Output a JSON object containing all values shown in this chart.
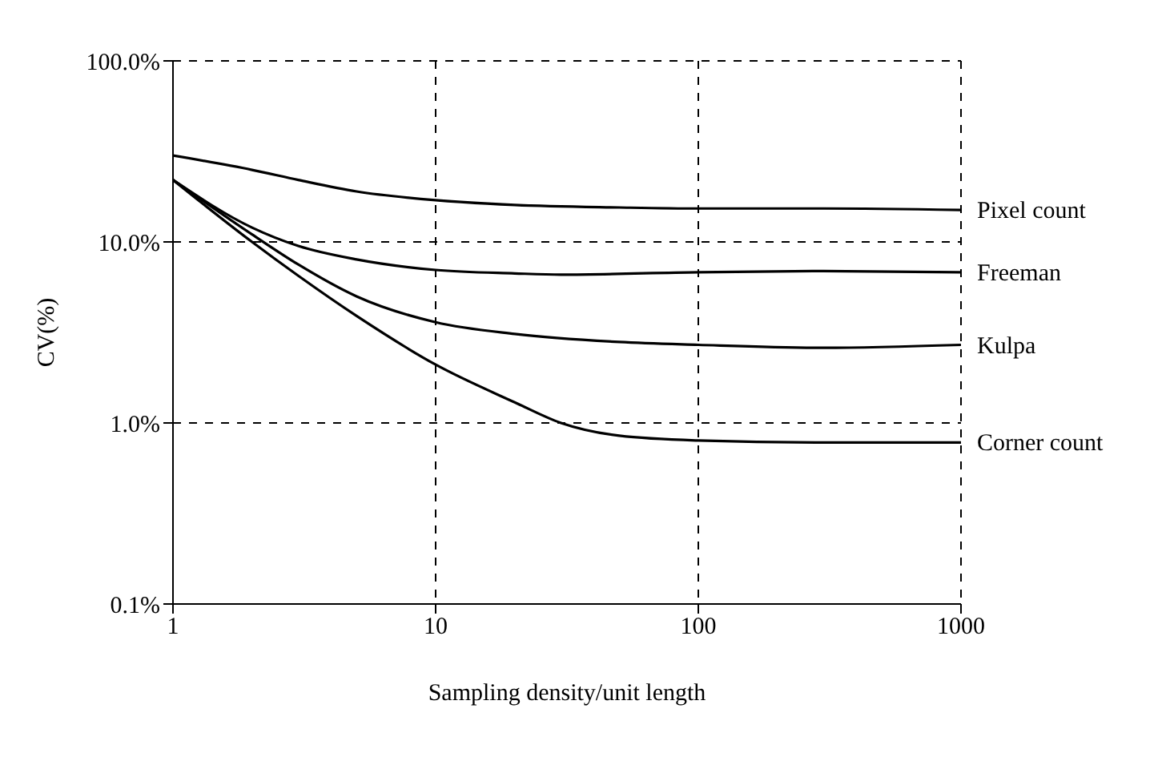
{
  "chart_data": {
    "type": "line",
    "xlabel": "Sampling density/unit length",
    "ylabel": "CV(%)",
    "log": "xy",
    "grid": true,
    "marker": "none",
    "line_style": "solid",
    "xlim": [
      1,
      1000
    ],
    "xticks": [
      1,
      10,
      100,
      1000
    ],
    "ylim": [
      0.1,
      100
    ],
    "yticks": [
      {
        "value": 0.1,
        "label": "0.1%"
      },
      {
        "value": 1,
        "label": "1.0%"
      },
      {
        "value": 10,
        "label": "10.0%"
      },
      {
        "value": 100,
        "label": "100.0%"
      }
    ],
    "series": [
      {
        "name": "Pixel count",
        "color": "#000000",
        "x": [
          1,
          2,
          3,
          5,
          10,
          20,
          50,
          100,
          300,
          1000
        ],
        "values": [
          30,
          25,
          22,
          19,
          17,
          16,
          15.5,
          15.3,
          15.3,
          15
        ]
      },
      {
        "name": "Freeman",
        "color": "#000000",
        "x": [
          1,
          2,
          3,
          5,
          10,
          20,
          30,
          100,
          300,
          1000
        ],
        "values": [
          22,
          12,
          9.5,
          8,
          7,
          6.7,
          6.6,
          6.8,
          6.9,
          6.8
        ]
      },
      {
        "name": "Kulpa",
        "color": "#000000",
        "x": [
          1,
          2,
          3,
          5,
          10,
          20,
          50,
          100,
          300,
          1000
        ],
        "values": [
          22,
          11,
          7.5,
          5,
          3.6,
          3.1,
          2.8,
          2.7,
          2.6,
          2.7
        ]
      },
      {
        "name": "Corner count",
        "color": "#000000",
        "x": [
          1,
          2,
          3,
          5,
          10,
          20,
          30,
          50,
          100,
          300,
          1000
        ],
        "values": [
          22,
          10,
          6.5,
          3.9,
          2.1,
          1.3,
          1.0,
          0.85,
          0.8,
          0.78,
          0.78
        ]
      }
    ]
  }
}
